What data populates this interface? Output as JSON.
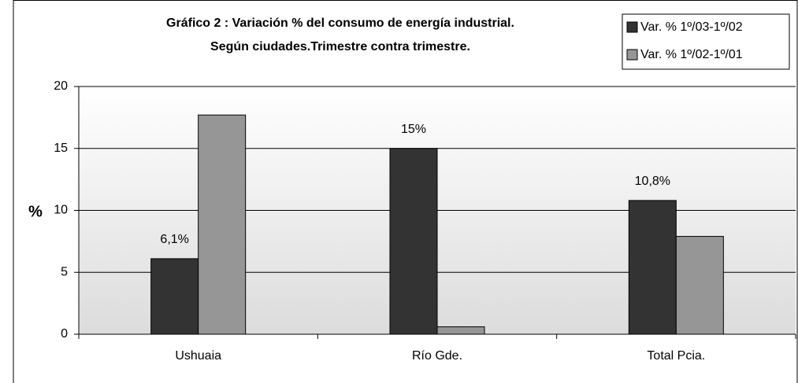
{
  "chart_data": {
    "type": "bar",
    "title": [
      "Gráfico 2 : Variación % del consumo de energía industrial.",
      "Según ciudades.Trimestre contra trimestre."
    ],
    "y_label": "%",
    "categories": [
      "Ushuaia",
      "Río Gde.",
      "Total Pcia."
    ],
    "series": [
      {
        "name": "Var. % 1º/03-1º/02",
        "color": "#333333",
        "values": [
          6.1,
          15,
          10.8
        ],
        "value_labels": [
          "6,1%",
          "15%",
          "10,8%"
        ]
      },
      {
        "name": "Var. % 1º/02-1º/01",
        "color": "#969696",
        "values": [
          17.7,
          0.6,
          7.9
        ]
      }
    ],
    "ylim": [
      0,
      20
    ],
    "yticks": [
      0,
      5,
      10,
      15,
      20
    ],
    "grid": true,
    "legend": "top-right"
  }
}
